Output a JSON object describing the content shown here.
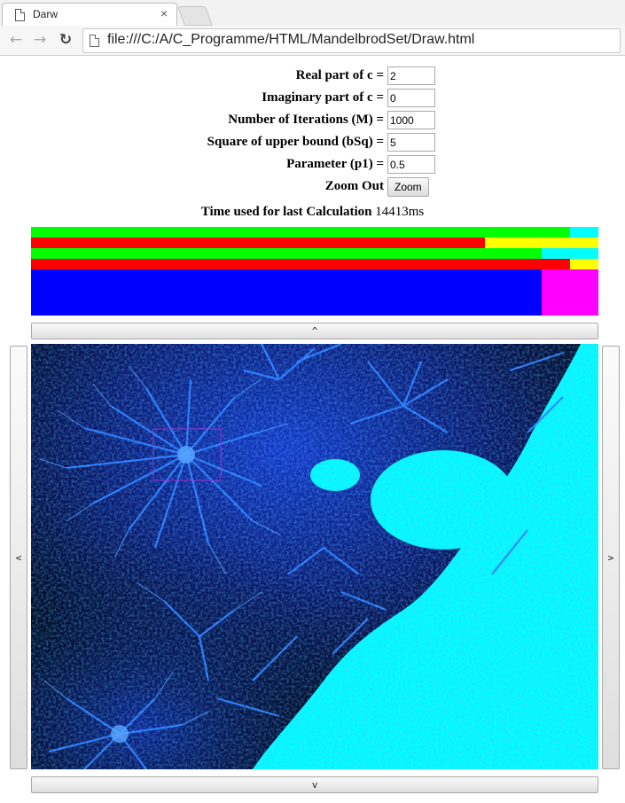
{
  "browser": {
    "tab_title": "Darw",
    "close_symbol": "×",
    "url": "file:///C:/A/C_Programme/HTML/MandelbrodSet/Draw.html",
    "back_icon": "arrow-left",
    "forward_icon": "arrow-right",
    "reload_icon": "reload"
  },
  "form": {
    "real_label": "Real part of c =",
    "real_value": "2",
    "imag_label": "Imaginary part of c =",
    "imag_value": "0",
    "iter_label": "Number of Iterations (M) =",
    "iter_value": "1000",
    "bound_label": "Square of upper bound (bSq) =",
    "bound_value": "5",
    "param_label": "Parameter (p1) =",
    "param_value": "0.5",
    "zoom_out_label": "Zoom Out",
    "zoom_button": "Zoom"
  },
  "timing": {
    "label": "Time used for last Calculation",
    "value": "14413ms"
  },
  "stats_bars": [
    {
      "segments": [
        {
          "color": "#00ff00",
          "fraction": 0.95
        },
        {
          "color": "#00ffff",
          "fraction": 0.05
        }
      ]
    },
    {
      "segments": [
        {
          "color": "#ff0000",
          "fraction": 0.8
        },
        {
          "color": "#ffff00",
          "fraction": 0.2
        }
      ]
    },
    {
      "segments": [
        {
          "color": "#00ff00",
          "fraction": 0.9
        },
        {
          "color": "#00ffff",
          "fraction": 0.1
        }
      ]
    },
    {
      "segments": [
        {
          "color": "#ff0000",
          "fraction": 0.95
        },
        {
          "color": "#ffff00",
          "fraction": 0.05
        }
      ]
    },
    {
      "segments": [
        {
          "color": "#0000ff",
          "fraction": 0.9
        },
        {
          "color": "#ff00ff",
          "fraction": 0.1
        }
      ]
    }
  ],
  "scroll": {
    "up": "^",
    "down": "v",
    "left": "<",
    "right": ">"
  },
  "colors": {
    "fractal_background": "#000a20",
    "fractal_blue": "#1a66ff",
    "fractal_inner": "#00ffff",
    "selection_box": "#9933cc"
  }
}
